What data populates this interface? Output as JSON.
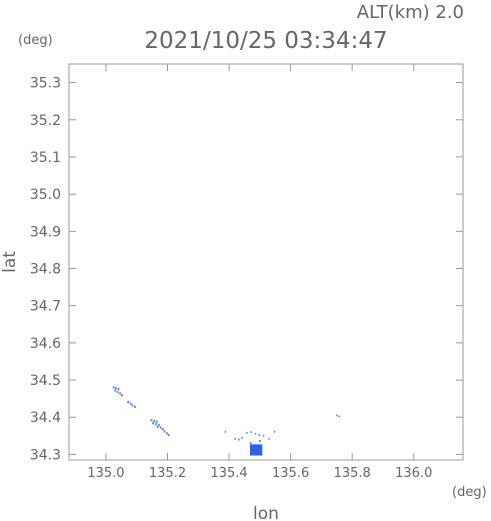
{
  "header": {
    "alt_label": "ALT(km) 2.0",
    "timestamp": "2021/10/25 03:34:47",
    "y_unit": "(deg)",
    "x_unit": "(deg)"
  },
  "chart_data": {
    "type": "scatter",
    "title": "2021/10/25 03:34:47",
    "subtitle": "ALT(km) 2.0",
    "xlabel": "lon",
    "ylabel": "lat",
    "xlim": [
      134.88,
      136.16
    ],
    "ylim": [
      34.285,
      35.35
    ],
    "xticks": [
      135.0,
      135.2,
      135.4,
      135.6,
      135.8,
      136.0
    ],
    "xtick_labels": [
      "135.0",
      "135.2",
      "135.4",
      "135.6",
      "135.8",
      "136.0"
    ],
    "yticks": [
      34.3,
      34.4,
      34.5,
      34.6,
      34.7,
      34.8,
      34.9,
      35.0,
      35.1,
      35.2,
      35.3
    ],
    "ytick_labels": [
      "34.3",
      "34.4",
      "34.5",
      "34.6",
      "34.7",
      "34.8",
      "34.9",
      "35.0",
      "35.1",
      "35.2",
      "35.3"
    ],
    "grid": false,
    "colors": {
      "light": "#5a8cf0",
      "strong": "#2f63e6",
      "axis": "#999999"
    },
    "points": [
      {
        "x": 135.025,
        "y": 34.48,
        "w": 0.006,
        "h": 0.006
      },
      {
        "x": 135.033,
        "y": 34.478,
        "w": 0.006,
        "h": 0.006
      },
      {
        "x": 135.041,
        "y": 34.476,
        "w": 0.006,
        "h": 0.006
      },
      {
        "x": 135.03,
        "y": 34.472,
        "w": 0.006,
        "h": 0.006
      },
      {
        "x": 135.038,
        "y": 34.468,
        "w": 0.006,
        "h": 0.006
      },
      {
        "x": 135.046,
        "y": 34.464,
        "w": 0.006,
        "h": 0.006
      },
      {
        "x": 135.052,
        "y": 34.459,
        "w": 0.006,
        "h": 0.006
      },
      {
        "x": 135.072,
        "y": 34.441,
        "w": 0.006,
        "h": 0.006
      },
      {
        "x": 135.08,
        "y": 34.437,
        "w": 0.006,
        "h": 0.006
      },
      {
        "x": 135.086,
        "y": 34.432,
        "w": 0.006,
        "h": 0.006
      },
      {
        "x": 135.095,
        "y": 34.428,
        "w": 0.006,
        "h": 0.006
      },
      {
        "x": 135.148,
        "y": 34.392,
        "w": 0.006,
        "h": 0.006
      },
      {
        "x": 135.157,
        "y": 34.39,
        "w": 0.006,
        "h": 0.006
      },
      {
        "x": 135.165,
        "y": 34.388,
        "w": 0.006,
        "h": 0.006
      },
      {
        "x": 135.153,
        "y": 34.384,
        "w": 0.006,
        "h": 0.006
      },
      {
        "x": 135.162,
        "y": 34.381,
        "w": 0.006,
        "h": 0.006
      },
      {
        "x": 135.172,
        "y": 34.379,
        "w": 0.006,
        "h": 0.006
      },
      {
        "x": 135.168,
        "y": 34.374,
        "w": 0.006,
        "h": 0.006
      },
      {
        "x": 135.178,
        "y": 34.372,
        "w": 0.006,
        "h": 0.006
      },
      {
        "x": 135.185,
        "y": 34.368,
        "w": 0.006,
        "h": 0.006
      },
      {
        "x": 135.19,
        "y": 34.362,
        "w": 0.006,
        "h": 0.006
      },
      {
        "x": 135.198,
        "y": 34.357,
        "w": 0.006,
        "h": 0.006
      },
      {
        "x": 135.204,
        "y": 34.352,
        "w": 0.006,
        "h": 0.006
      },
      {
        "x": 135.388,
        "y": 34.361,
        "w": 0.005,
        "h": 0.005
      },
      {
        "x": 135.42,
        "y": 34.342,
        "w": 0.005,
        "h": 0.005
      },
      {
        "x": 135.432,
        "y": 34.34,
        "w": 0.005,
        "h": 0.005
      },
      {
        "x": 135.442,
        "y": 34.344,
        "w": 0.005,
        "h": 0.005
      },
      {
        "x": 135.458,
        "y": 34.358,
        "w": 0.005,
        "h": 0.005
      },
      {
        "x": 135.472,
        "y": 34.36,
        "w": 0.005,
        "h": 0.005
      },
      {
        "x": 135.486,
        "y": 34.355,
        "w": 0.005,
        "h": 0.005
      },
      {
        "x": 135.498,
        "y": 34.352,
        "w": 0.005,
        "h": 0.005
      },
      {
        "x": 135.512,
        "y": 34.35,
        "w": 0.005,
        "h": 0.005
      },
      {
        "x": 135.53,
        "y": 34.342,
        "w": 0.005,
        "h": 0.005
      },
      {
        "x": 135.548,
        "y": 34.361,
        "w": 0.005,
        "h": 0.005
      },
      {
        "x": 135.47,
        "y": 34.33,
        "w": 0.006,
        "h": 0.006
      },
      {
        "x": 135.5,
        "y": 34.336,
        "w": 0.006,
        "h": 0.006
      },
      {
        "x": 135.75,
        "y": 34.405,
        "w": 0.005,
        "h": 0.005
      },
      {
        "x": 135.758,
        "y": 34.402,
        "w": 0.005,
        "h": 0.005
      },
      {
        "x": 135.488,
        "y": 34.312,
        "w": 0.04,
        "h": 0.03,
        "strong": true
      }
    ]
  }
}
